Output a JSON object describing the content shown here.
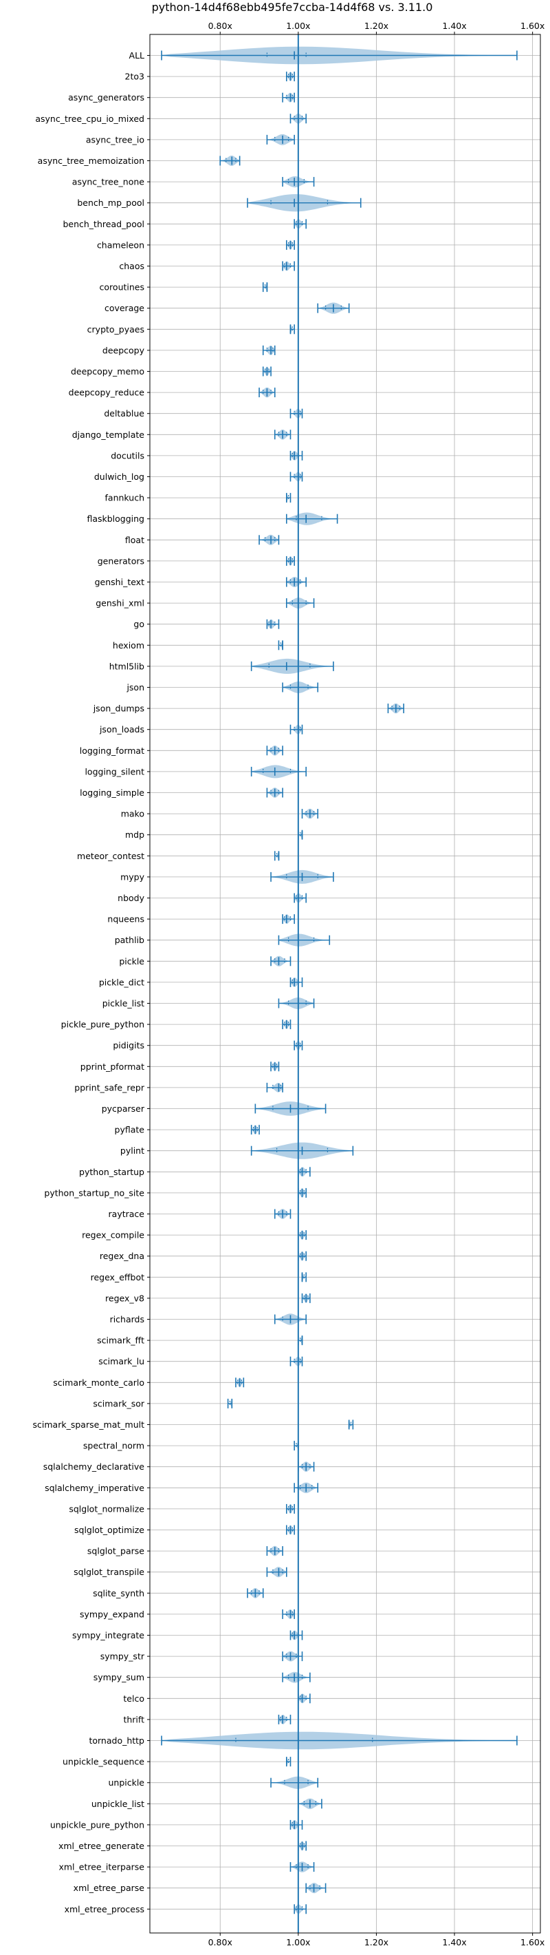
{
  "chart_data": {
    "type": "violin",
    "title": "python-14d4f68ebb495fe7ccba-14d4f68 vs. 3.11.0",
    "xlim": [
      0.62,
      1.62
    ],
    "x_ticks": [
      0.8,
      1.0,
      1.2,
      1.4,
      1.6
    ],
    "x_tick_labels": [
      "0.80x",
      "1.00x",
      "1.20x",
      "1.40x",
      "1.60x"
    ],
    "ticks_top_and_bottom": true,
    "grid": true,
    "reference_line": 1.0,
    "colors": {
      "violin_fill": "#a6c8e2",
      "violin_line": "#1f77b4",
      "ref_line": "#1f77b4",
      "grid": "#b0b0b0"
    },
    "benchmarks": [
      {
        "name": "ALL",
        "min": 0.65,
        "median": 0.99,
        "max": 1.56,
        "q1": 0.92,
        "q3": 1.02
      },
      {
        "name": "2to3",
        "min": 0.97,
        "median": 0.98,
        "max": 0.99
      },
      {
        "name": "async_generators",
        "min": 0.96,
        "median": 0.98,
        "max": 0.99
      },
      {
        "name": "async_tree_cpu_io_mixed",
        "min": 0.98,
        "median": 1.0,
        "max": 1.02
      },
      {
        "name": "async_tree_io",
        "min": 0.92,
        "median": 0.96,
        "max": 0.99
      },
      {
        "name": "async_tree_memoization",
        "min": 0.8,
        "median": 0.83,
        "max": 0.85
      },
      {
        "name": "async_tree_none",
        "min": 0.96,
        "median": 0.99,
        "max": 1.04
      },
      {
        "name": "bench_mp_pool",
        "min": 0.87,
        "median": 0.99,
        "max": 1.16
      },
      {
        "name": "bench_thread_pool",
        "min": 0.99,
        "median": 1.0,
        "max": 1.02
      },
      {
        "name": "chameleon",
        "min": 0.97,
        "median": 0.98,
        "max": 0.99
      },
      {
        "name": "chaos",
        "min": 0.96,
        "median": 0.97,
        "max": 0.99
      },
      {
        "name": "coroutines",
        "min": 0.91,
        "median": 0.92,
        "max": 0.92
      },
      {
        "name": "coverage",
        "min": 1.05,
        "median": 1.09,
        "max": 1.13
      },
      {
        "name": "crypto_pyaes",
        "min": 0.98,
        "median": 0.98,
        "max": 0.99
      },
      {
        "name": "deepcopy",
        "min": 0.91,
        "median": 0.93,
        "max": 0.94
      },
      {
        "name": "deepcopy_memo",
        "min": 0.91,
        "median": 0.92,
        "max": 0.93
      },
      {
        "name": "deepcopy_reduce",
        "min": 0.9,
        "median": 0.92,
        "max": 0.94
      },
      {
        "name": "deltablue",
        "min": 0.98,
        "median": 1.0,
        "max": 1.01
      },
      {
        "name": "django_template",
        "min": 0.94,
        "median": 0.96,
        "max": 0.98
      },
      {
        "name": "docutils",
        "min": 0.98,
        "median": 0.99,
        "max": 1.01
      },
      {
        "name": "dulwich_log",
        "min": 0.98,
        "median": 1.0,
        "max": 1.01
      },
      {
        "name": "fannkuch",
        "min": 0.97,
        "median": 0.97,
        "max": 0.98
      },
      {
        "name": "flaskblogging",
        "min": 0.97,
        "median": 1.02,
        "max": 1.1
      },
      {
        "name": "float",
        "min": 0.9,
        "median": 0.93,
        "max": 0.95
      },
      {
        "name": "generators",
        "min": 0.97,
        "median": 0.98,
        "max": 0.99
      },
      {
        "name": "genshi_text",
        "min": 0.97,
        "median": 0.99,
        "max": 1.02
      },
      {
        "name": "genshi_xml",
        "min": 0.97,
        "median": 1.0,
        "max": 1.04
      },
      {
        "name": "go",
        "min": 0.92,
        "median": 0.93,
        "max": 0.95
      },
      {
        "name": "hexiom",
        "min": 0.95,
        "median": 0.96,
        "max": 0.96
      },
      {
        "name": "html5lib",
        "min": 0.88,
        "median": 0.97,
        "max": 1.09
      },
      {
        "name": "json",
        "min": 0.96,
        "median": 1.0,
        "max": 1.05
      },
      {
        "name": "json_dumps",
        "min": 1.23,
        "median": 1.25,
        "max": 1.27
      },
      {
        "name": "json_loads",
        "min": 0.98,
        "median": 1.0,
        "max": 1.01
      },
      {
        "name": "logging_format",
        "min": 0.92,
        "median": 0.94,
        "max": 0.96
      },
      {
        "name": "logging_silent",
        "min": 0.88,
        "median": 0.94,
        "max": 1.02
      },
      {
        "name": "logging_simple",
        "min": 0.92,
        "median": 0.94,
        "max": 0.96
      },
      {
        "name": "mako",
        "min": 1.01,
        "median": 1.03,
        "max": 1.05
      },
      {
        "name": "mdp",
        "min": 1.0,
        "median": 1.01,
        "max": 1.01
      },
      {
        "name": "meteor_contest",
        "min": 0.94,
        "median": 0.95,
        "max": 0.95
      },
      {
        "name": "mypy",
        "min": 0.93,
        "median": 1.01,
        "max": 1.09
      },
      {
        "name": "nbody",
        "min": 0.99,
        "median": 1.0,
        "max": 1.02
      },
      {
        "name": "nqueens",
        "min": 0.96,
        "median": 0.97,
        "max": 0.99
      },
      {
        "name": "pathlib",
        "min": 0.95,
        "median": 1.0,
        "max": 1.08
      },
      {
        "name": "pickle",
        "min": 0.93,
        "median": 0.95,
        "max": 0.98
      },
      {
        "name": "pickle_dict",
        "min": 0.98,
        "median": 0.99,
        "max": 1.01
      },
      {
        "name": "pickle_list",
        "min": 0.95,
        "median": 1.0,
        "max": 1.04
      },
      {
        "name": "pickle_pure_python",
        "min": 0.96,
        "median": 0.97,
        "max": 0.98
      },
      {
        "name": "pidigits",
        "min": 0.99,
        "median": 1.0,
        "max": 1.01
      },
      {
        "name": "pprint_pformat",
        "min": 0.93,
        "median": 0.94,
        "max": 0.95
      },
      {
        "name": "pprint_safe_repr",
        "min": 0.92,
        "median": 0.95,
        "max": 0.96
      },
      {
        "name": "pycparser",
        "min": 0.89,
        "median": 0.98,
        "max": 1.07
      },
      {
        "name": "pyflate",
        "min": 0.88,
        "median": 0.89,
        "max": 0.9
      },
      {
        "name": "pylint",
        "min": 0.88,
        "median": 1.01,
        "max": 1.14
      },
      {
        "name": "python_startup",
        "min": 1.0,
        "median": 1.01,
        "max": 1.03
      },
      {
        "name": "python_startup_no_site",
        "min": 1.0,
        "median": 1.01,
        "max": 1.02
      },
      {
        "name": "raytrace",
        "min": 0.94,
        "median": 0.96,
        "max": 0.98
      },
      {
        "name": "regex_compile",
        "min": 1.0,
        "median": 1.01,
        "max": 1.02
      },
      {
        "name": "regex_dna",
        "min": 1.0,
        "median": 1.01,
        "max": 1.02
      },
      {
        "name": "regex_effbot",
        "min": 1.01,
        "median": 1.01,
        "max": 1.02
      },
      {
        "name": "regex_v8",
        "min": 1.01,
        "median": 1.02,
        "max": 1.03
      },
      {
        "name": "richards",
        "min": 0.94,
        "median": 0.98,
        "max": 1.02
      },
      {
        "name": "scimark_fft",
        "min": 1.0,
        "median": 1.01,
        "max": 1.01
      },
      {
        "name": "scimark_lu",
        "min": 0.98,
        "median": 1.0,
        "max": 1.01
      },
      {
        "name": "scimark_monte_carlo",
        "min": 0.84,
        "median": 0.85,
        "max": 0.86
      },
      {
        "name": "scimark_sor",
        "min": 0.82,
        "median": 0.83,
        "max": 0.83
      },
      {
        "name": "scimark_sparse_mat_mult",
        "min": 1.13,
        "median": 1.13,
        "max": 1.14
      },
      {
        "name": "spectral_norm",
        "min": 0.99,
        "median": 1.0,
        "max": 1.0
      },
      {
        "name": "sqlalchemy_declarative",
        "min": 1.0,
        "median": 1.02,
        "max": 1.04
      },
      {
        "name": "sqlalchemy_imperative",
        "min": 0.99,
        "median": 1.02,
        "max": 1.05
      },
      {
        "name": "sqlglot_normalize",
        "min": 0.97,
        "median": 0.98,
        "max": 0.99
      },
      {
        "name": "sqlglot_optimize",
        "min": 0.97,
        "median": 0.98,
        "max": 0.99
      },
      {
        "name": "sqlglot_parse",
        "min": 0.92,
        "median": 0.94,
        "max": 0.96
      },
      {
        "name": "sqlglot_transpile",
        "min": 0.92,
        "median": 0.95,
        "max": 0.97
      },
      {
        "name": "sqlite_synth",
        "min": 0.87,
        "median": 0.89,
        "max": 0.91
      },
      {
        "name": "sympy_expand",
        "min": 0.96,
        "median": 0.98,
        "max": 0.99
      },
      {
        "name": "sympy_integrate",
        "min": 0.98,
        "median": 0.99,
        "max": 1.01
      },
      {
        "name": "sympy_str",
        "min": 0.96,
        "median": 0.98,
        "max": 1.01
      },
      {
        "name": "sympy_sum",
        "min": 0.96,
        "median": 0.99,
        "max": 1.03
      },
      {
        "name": "telco",
        "min": 1.0,
        "median": 1.01,
        "max": 1.03
      },
      {
        "name": "thrift",
        "min": 0.95,
        "median": 0.96,
        "max": 0.98
      },
      {
        "name": "tornado_http",
        "min": 0.65,
        "median": 1.0,
        "max": 1.56,
        "q1": 0.84,
        "q3": 1.19
      },
      {
        "name": "unpickle_sequence",
        "min": 0.97,
        "median": 0.97,
        "max": 0.98
      },
      {
        "name": "unpickle",
        "min": 0.93,
        "median": 1.0,
        "max": 1.05
      },
      {
        "name": "unpickle_list",
        "min": 1.0,
        "median": 1.03,
        "max": 1.06
      },
      {
        "name": "unpickle_pure_python",
        "min": 0.98,
        "median": 0.99,
        "max": 1.01
      },
      {
        "name": "xml_etree_generate",
        "min": 1.0,
        "median": 1.01,
        "max": 1.02
      },
      {
        "name": "xml_etree_iterparse",
        "min": 0.98,
        "median": 1.01,
        "max": 1.04
      },
      {
        "name": "xml_etree_parse",
        "min": 1.02,
        "median": 1.04,
        "max": 1.07
      },
      {
        "name": "xml_etree_process",
        "min": 0.99,
        "median": 1.0,
        "max": 1.02
      }
    ]
  }
}
